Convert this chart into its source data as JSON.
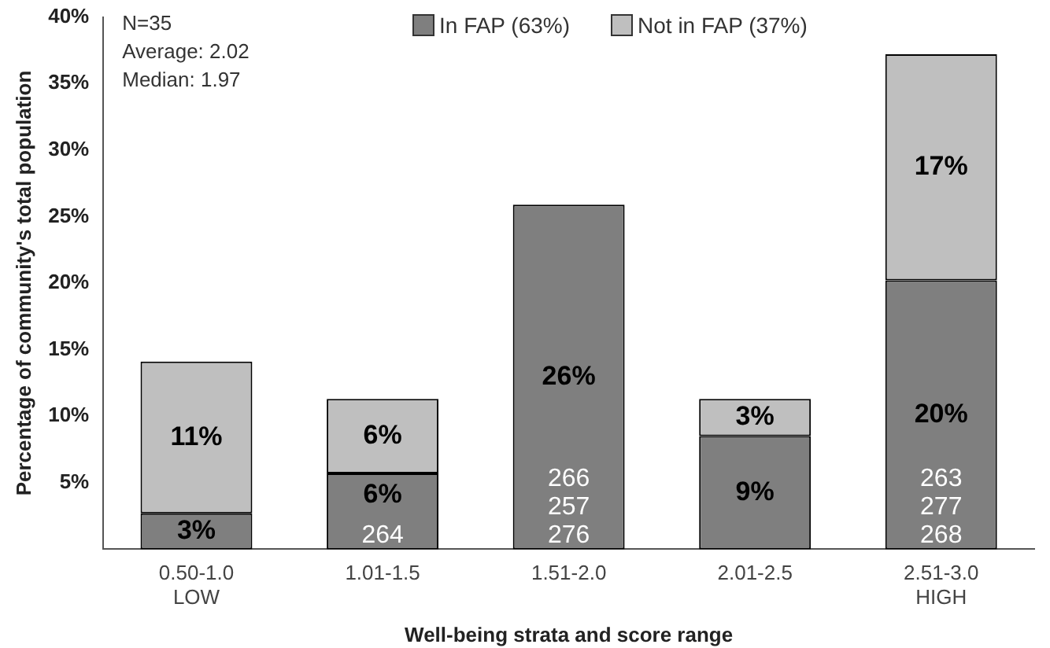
{
  "chart_data": {
    "type": "bar",
    "stacked": true,
    "xlabel": "Well-being strata and score range",
    "ylabel": "Percentage of community's total population",
    "categories": [
      "0.50-1.0\nLOW",
      "1.01-1.5",
      "1.51-2.0",
      "2.01-2.5",
      "2.51-3.0\nHIGH"
    ],
    "series": [
      {
        "name": "In FAP (63%)",
        "color": "#7f7f7f",
        "values": [
          2.7,
          5.7,
          25.9,
          8.5,
          20.2
        ],
        "value_labels": [
          "3%",
          "6%",
          "26%",
          "9%",
          "20%"
        ]
      },
      {
        "name": "Not in FAP (37%)",
        "color": "#bfbfbf",
        "values": [
          11.4,
          5.6,
          null,
          2.8,
          17.0
        ],
        "value_labels": [
          "11%",
          "6%",
          null,
          "3%",
          "17%"
        ]
      }
    ],
    "ylim": [
      0,
      40
    ],
    "yticks": [
      {
        "value": 5,
        "label": "5%"
      },
      {
        "value": 10,
        "label": "10%"
      },
      {
        "value": 15,
        "label": "15%"
      },
      {
        "value": 20,
        "label": "20%"
      },
      {
        "value": 25,
        "label": "25%"
      },
      {
        "value": 30,
        "label": "30%"
      },
      {
        "value": 35,
        "label": "35%"
      },
      {
        "value": 40,
        "label": "40%"
      }
    ],
    "grid": false,
    "legend": "top",
    "annotations": [
      "N=35",
      "Average: 2.02",
      "Median: 1.97",
      "264",
      "266\n257\n276",
      "263\n277\n268"
    ]
  }
}
